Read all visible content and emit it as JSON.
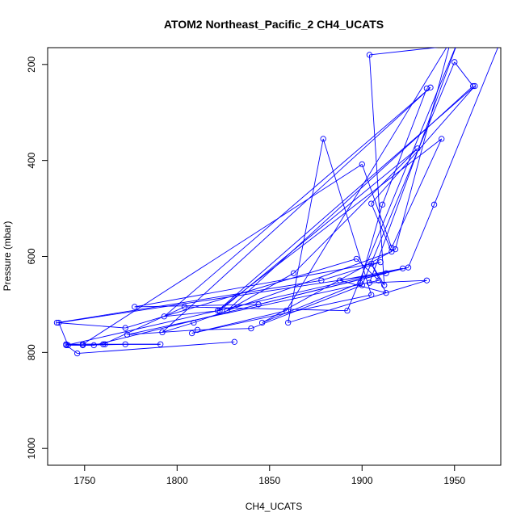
{
  "chart_data": {
    "type": "line",
    "title": "ATOM2 Northeast_Pacific_2 CH4_UCATS",
    "xlabel": "CH4_UCATS",
    "ylabel": "Pressure (mbar)",
    "xlim": [
      1730,
      1975
    ],
    "ylim": [
      1035,
      165
    ],
    "y_reversed": true,
    "xticks": [
      1750,
      1800,
      1850,
      1900,
      1950
    ],
    "yticks": [
      200,
      400,
      600,
      800,
      1000
    ],
    "grid": false,
    "legend": "none",
    "colors": {
      "series": "#0000ff",
      "axes": "#000000",
      "background": "#ffffff"
    },
    "series": [
      {
        "marker": "open-circle",
        "x": [
          1831,
          1746,
          1740,
          1922,
          1888,
          1913,
          1905,
          1912,
          1904,
          1975,
          1939,
          1925,
          1755,
          1741,
          1736,
          1913,
          1844,
          1777,
          1910,
          1878,
          1735,
          1772,
          1897,
          1909,
          1773,
          1811,
          1840,
          1900,
          1950,
          1960,
          1827,
          1863,
          1930,
          1823,
          1793,
          1937,
          1792,
          1809,
          1916,
          1905,
          1961,
          1822,
          1943,
          1916,
          1900,
          1749,
          1761,
          1791,
          1772,
          1749,
          1740,
          1760,
          1804,
          1892,
          1952,
          1904,
          1935,
          1860,
          1879,
          1905,
          1808,
          1859,
          1948,
          1918,
          1846,
          1899,
          1911,
          1935
        ],
        "y": [
          778,
          802,
          785,
          625,
          650,
          676,
          615,
          660,
          180,
          150,
          492,
          623,
          785,
          785,
          738,
          635,
          700,
          705,
          612,
          650,
          738,
          749,
          605,
          650,
          763,
          753,
          750,
          660,
          195,
          245,
          713,
          635,
          375,
          713,
          725,
          248,
          758,
          738,
          590,
          490,
          245,
          713,
          355,
          582,
          408,
          783,
          783,
          783,
          783,
          785,
          783,
          783,
          705,
          713,
          150,
          655,
          650,
          738,
          355,
          680,
          760,
          713,
          150,
          585,
          738,
          655,
          492,
          250
        ]
      }
    ]
  }
}
